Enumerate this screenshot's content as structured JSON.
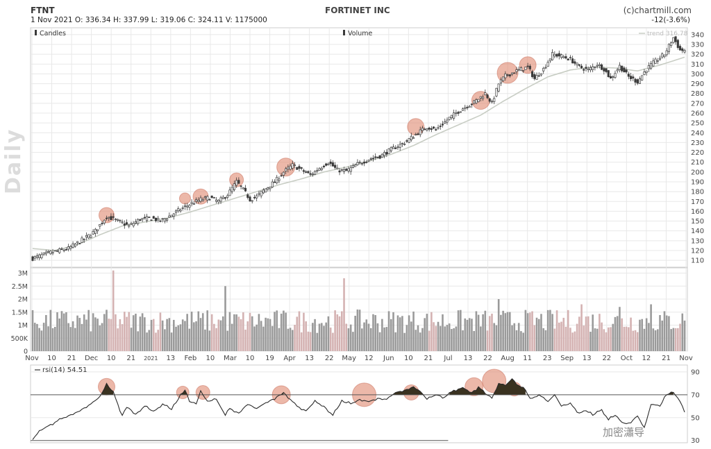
{
  "header": {
    "ticker": "FTNT",
    "company": "FORTINET INC",
    "credit": "(c)chartmill.com",
    "quote": "1 Nov 2021    O: 336.34   H: 337.99   L: 319.06   C: 324.11    V: 1175000",
    "change": "-12(-3.6%)",
    "timeframe_label": "Daily"
  },
  "legend": {
    "candles": "Candles",
    "volume": "Volume",
    "trend": "trend 316.78"
  },
  "watermark": "加密瀟导",
  "colors": {
    "candle": "#3a3a3a",
    "trend_line": "#c8cdc4",
    "volume_up": "#9a9a9a",
    "volume_down": "#d4b2b2",
    "highlight": "#e08870",
    "rsi_fill": "#3a3220",
    "grid": "#e8e8e8",
    "axis": "#cccccc"
  },
  "chart_data": [
    {
      "type": "candlestick",
      "title": "FTNT",
      "x_ticks": [
        "Nov",
        "10",
        "21",
        "Dec",
        "10",
        "21",
        "2021",
        "13",
        "Feb",
        "10",
        "Mar",
        "10",
        "19",
        "Apr",
        "13",
        "22",
        "May",
        "12",
        "Jun",
        "10",
        "21",
        "Jul",
        "13",
        "22",
        "Aug",
        "11",
        "23",
        "Sep",
        "13",
        "22",
        "Oct",
        "12",
        "21",
        "Nov"
      ],
      "y_ticks": [
        110,
        120,
        130,
        140,
        150,
        160,
        170,
        180,
        190,
        200,
        210,
        220,
        230,
        240,
        250,
        260,
        270,
        280,
        290,
        300,
        310,
        320,
        330,
        340
      ],
      "ylim": [
        103,
        347
      ],
      "close_anchors": [
        [
          0,
          112
        ],
        [
          8,
          118
        ],
        [
          16,
          122
        ],
        [
          23,
          132
        ],
        [
          28,
          140
        ],
        [
          33,
          155
        ],
        [
          38,
          150
        ],
        [
          43,
          145
        ],
        [
          48,
          152
        ],
        [
          53,
          153
        ],
        [
          57,
          150
        ],
        [
          61,
          155
        ],
        [
          66,
          162
        ],
        [
          71,
          168
        ],
        [
          75,
          172
        ],
        [
          79,
          174
        ],
        [
          83,
          170
        ],
        [
          87,
          177
        ],
        [
          91,
          190
        ],
        [
          94,
          182
        ],
        [
          97,
          172
        ],
        [
          100,
          175
        ],
        [
          104,
          183
        ],
        [
          108,
          190
        ],
        [
          112,
          200
        ],
        [
          116,
          207
        ],
        [
          120,
          202
        ],
        [
          124,
          197
        ],
        [
          128,
          204
        ],
        [
          132,
          210
        ],
        [
          136,
          202
        ],
        [
          140,
          201
        ],
        [
          145,
          208
        ],
        [
          150,
          213
        ],
        [
          155,
          216
        ],
        [
          160,
          223
        ],
        [
          166,
          230
        ],
        [
          172,
          240
        ],
        [
          176,
          246
        ],
        [
          180,
          243
        ],
        [
          186,
          255
        ],
        [
          192,
          265
        ],
        [
          197,
          271
        ],
        [
          202,
          280
        ],
        [
          205,
          270
        ],
        [
          208,
          290
        ],
        [
          211,
          298
        ],
        [
          216,
          303
        ],
        [
          221,
          307
        ],
        [
          224,
          295
        ],
        [
          228,
          305
        ],
        [
          232,
          320
        ],
        [
          236,
          318
        ],
        [
          240,
          315
        ],
        [
          244,
          307
        ],
        [
          248,
          304
        ],
        [
          252,
          310
        ],
        [
          255,
          305
        ],
        [
          258,
          295
        ],
        [
          262,
          308
        ],
        [
          266,
          297
        ],
        [
          270,
          292
        ],
        [
          274,
          305
        ],
        [
          278,
          313
        ],
        [
          282,
          320
        ],
        [
          286,
          337
        ],
        [
          289,
          324
        ],
        [
          291,
          324
        ]
      ],
      "trend_anchors": [
        [
          0,
          122
        ],
        [
          10,
          120
        ],
        [
          20,
          126
        ],
        [
          30,
          136
        ],
        [
          40,
          145
        ],
        [
          50,
          149
        ],
        [
          60,
          153
        ],
        [
          70,
          159
        ],
        [
          80,
          166
        ],
        [
          90,
          173
        ],
        [
          100,
          180
        ],
        [
          110,
          187
        ],
        [
          120,
          193
        ],
        [
          130,
          200
        ],
        [
          140,
          205
        ],
        [
          150,
          211
        ],
        [
          160,
          218
        ],
        [
          170,
          227
        ],
        [
          180,
          238
        ],
        [
          190,
          248
        ],
        [
          200,
          258
        ],
        [
          210,
          272
        ],
        [
          220,
          285
        ],
        [
          230,
          297
        ],
        [
          240,
          304
        ],
        [
          250,
          307
        ],
        [
          260,
          306
        ],
        [
          270,
          303
        ],
        [
          280,
          309
        ],
        [
          291,
          317
        ]
      ],
      "highlights": [
        {
          "x": 33,
          "y": 156,
          "r": 11
        },
        {
          "x": 68,
          "y": 173,
          "r": 8
        },
        {
          "x": 75,
          "y": 175,
          "r": 11
        },
        {
          "x": 91,
          "y": 192,
          "r": 10
        },
        {
          "x": 113,
          "y": 205,
          "r": 13
        },
        {
          "x": 171,
          "y": 246,
          "r": 12
        },
        {
          "x": 200,
          "y": 273,
          "r": 13
        },
        {
          "x": 212,
          "y": 301,
          "r": 15
        },
        {
          "x": 221,
          "y": 309,
          "r": 12
        }
      ]
    },
    {
      "type": "bar",
      "title": "Volume",
      "y_ticks": [
        "3M",
        "2.5M",
        "2M",
        "1.5M",
        "1M",
        "500K",
        "0"
      ],
      "y_tick_values": [
        3000000,
        2500000,
        2000000,
        1500000,
        1000000,
        500000,
        0
      ],
      "ylim": [
        0,
        3200000
      ],
      "spikes": [
        {
          "i": 36,
          "v": 3100000
        },
        {
          "i": 86,
          "v": 2500000
        },
        {
          "i": 139,
          "v": 2800000
        },
        {
          "i": 208,
          "v": 2000000
        },
        {
          "i": 245,
          "v": 1800000
        },
        {
          "i": 262,
          "v": 1700000
        },
        {
          "i": 276,
          "v": 1800000
        }
      ],
      "last_value": 1175000
    },
    {
      "type": "line",
      "title": "rsi(14) 54.51",
      "y_ticks": [
        30,
        50,
        70,
        90
      ],
      "ylim": [
        28,
        96
      ],
      "overbought": 70,
      "lower_line": 30,
      "rsi_anchors": [
        [
          0,
          31
        ],
        [
          3,
          38
        ],
        [
          8,
          44
        ],
        [
          14,
          50
        ],
        [
          20,
          55
        ],
        [
          26,
          62
        ],
        [
          30,
          68
        ],
        [
          33,
          79
        ],
        [
          36,
          72
        ],
        [
          38,
          62
        ],
        [
          40,
          52
        ],
        [
          42,
          60
        ],
        [
          46,
          53
        ],
        [
          50,
          60
        ],
        [
          54,
          55
        ],
        [
          58,
          62
        ],
        [
          62,
          57
        ],
        [
          66,
          69
        ],
        [
          68,
          74
        ],
        [
          70,
          64
        ],
        [
          73,
          62
        ],
        [
          75,
          73
        ],
        [
          78,
          64
        ],
        [
          82,
          66
        ],
        [
          86,
          52
        ],
        [
          88,
          58
        ],
        [
          92,
          54
        ],
        [
          96,
          62
        ],
        [
          100,
          58
        ],
        [
          104,
          63
        ],
        [
          108,
          67
        ],
        [
          112,
          72
        ],
        [
          114,
          68
        ],
        [
          118,
          60
        ],
        [
          122,
          56
        ],
        [
          126,
          64
        ],
        [
          130,
          60
        ],
        [
          134,
          52
        ],
        [
          138,
          64
        ],
        [
          142,
          62
        ],
        [
          146,
          66
        ],
        [
          150,
          64
        ],
        [
          154,
          67
        ],
        [
          158,
          66
        ],
        [
          162,
          72
        ],
        [
          166,
          74
        ],
        [
          170,
          77
        ],
        [
          173,
          73
        ],
        [
          176,
          66
        ],
        [
          180,
          70
        ],
        [
          184,
          68
        ],
        [
          188,
          74
        ],
        [
          192,
          76
        ],
        [
          196,
          72
        ],
        [
          199,
          77
        ],
        [
          202,
          71
        ],
        [
          205,
          67
        ],
        [
          208,
          80
        ],
        [
          211,
          78
        ],
        [
          214,
          84
        ],
        [
          217,
          78
        ],
        [
          220,
          74
        ],
        [
          222,
          66
        ],
        [
          226,
          70
        ],
        [
          230,
          64
        ],
        [
          233,
          70
        ],
        [
          236,
          60
        ],
        [
          240,
          62
        ],
        [
          244,
          54
        ],
        [
          247,
          56
        ],
        [
          250,
          52
        ],
        [
          254,
          57
        ],
        [
          257,
          48
        ],
        [
          260,
          52
        ],
        [
          264,
          44
        ],
        [
          267,
          46
        ],
        [
          270,
          52
        ],
        [
          273,
          40
        ],
        [
          276,
          62
        ],
        [
          280,
          60
        ],
        [
          283,
          70
        ],
        [
          286,
          72
        ],
        [
          289,
          64
        ],
        [
          291,
          56
        ]
      ],
      "highlights": [
        {
          "x": 33,
          "y": 77,
          "r": 12
        },
        {
          "x": 67,
          "y": 72,
          "r": 9
        },
        {
          "x": 76,
          "y": 72,
          "r": 10
        },
        {
          "x": 111,
          "y": 70,
          "r": 13
        },
        {
          "x": 148,
          "y": 70,
          "r": 17
        },
        {
          "x": 169,
          "y": 72,
          "r": 11
        },
        {
          "x": 197,
          "y": 77,
          "r": 13
        },
        {
          "x": 206,
          "y": 82,
          "r": 17
        },
        {
          "x": 215,
          "y": 75,
          "r": 10
        }
      ]
    }
  ]
}
